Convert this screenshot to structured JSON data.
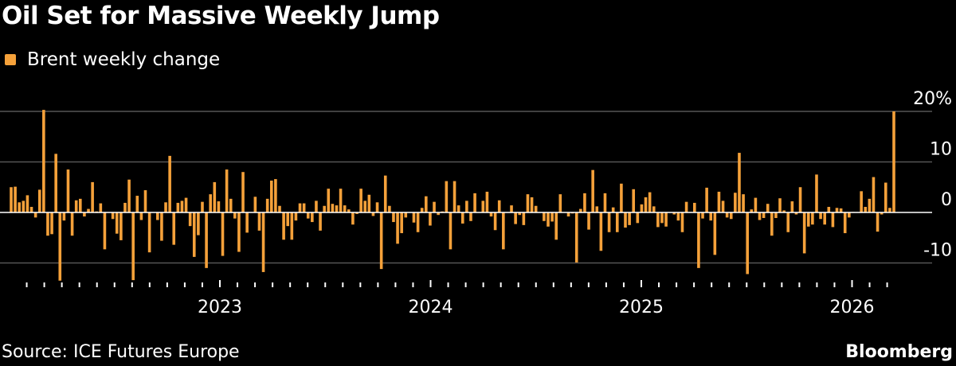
{
  "colors": {
    "background": "#000000",
    "bar": "#f5a13a",
    "grid": "#555555",
    "zero_line": "#ffffff",
    "text": "#ffffff"
  },
  "footer": {
    "source": "Source: ICE Futures Europe",
    "brand": "Bloomberg"
  },
  "chart_data": {
    "type": "bar",
    "title": "Oil Set for Massive Weekly Jump",
    "legend": {
      "entries": [
        "Brent weekly change"
      ],
      "placement": "top-left"
    },
    "series": [
      {
        "name": "Brent weekly change",
        "frequency": "weekly",
        "values": [
          5,
          5.1,
          2,
          2.3,
          3.4,
          1.1,
          -1,
          4.5,
          20.3,
          -4.6,
          -4.3,
          11.6,
          -13.5,
          -1.6,
          8.5,
          -4.6,
          2.4,
          2.7,
          -0.8,
          0.7,
          6,
          0.2,
          1.8,
          -7.3,
          0,
          -1.3,
          -4.2,
          -5.5,
          1.9,
          6.5,
          -13.4,
          3.3,
          -1.5,
          4.4,
          -7.9,
          0,
          -1.5,
          -5.6,
          2,
          11.2,
          -6.4,
          1.9,
          2.3,
          2.9,
          -2.7,
          -8.8,
          -4.5,
          2.1,
          -11,
          3.6,
          6,
          2.2,
          -8.6,
          8.5,
          2.7,
          -1.2,
          -7.8,
          8,
          -4,
          0,
          3.1,
          -3.6,
          -11.8,
          2.7,
          6.3,
          6.6,
          1.3,
          -5.4,
          -2.7,
          -5.4,
          -1.6,
          1.8,
          1.8,
          -1.2,
          -1.9,
          2.3,
          -3.6,
          1.3,
          4.7,
          1.7,
          1.4,
          4.7,
          1.4,
          0.6,
          -2.4,
          -0.3,
          4.7,
          2.3,
          3.5,
          -0.7,
          2,
          -11.2,
          7.3,
          1.3,
          -1.9,
          -6.2,
          -4.1,
          -1,
          0,
          -2,
          -3.9,
          0.9,
          3.2,
          -2.6,
          2.1,
          -0.5,
          0.2,
          6.2,
          -7.3,
          6.2,
          1.4,
          -2.2,
          2.3,
          -1.7,
          3.8,
          0,
          2.3,
          4.1,
          -0.8,
          -3.5,
          2.4,
          -7.3,
          0,
          1.4,
          -2.3,
          -0.5,
          -2.5,
          3.6,
          3,
          1.3,
          0,
          -1.7,
          -2.8,
          -1.8,
          -5.4,
          3.6,
          0,
          -0.8,
          -0.2,
          -9.9,
          0.7,
          3.8,
          -3.4,
          8.4,
          1.2,
          -7.6,
          3.8,
          -3.9,
          1,
          -3.9,
          5.7,
          -3,
          -2.5,
          4.6,
          -2.1,
          1.6,
          3,
          4,
          1.2,
          -2.9,
          -2.1,
          -2.8,
          0,
          -0.4,
          -1.6,
          -3.9,
          2.1,
          0.1,
          1.9,
          -11,
          -1.2,
          4.9,
          -1.6,
          -8.4,
          4.1,
          2.3,
          -1,
          -1.3,
          3.9,
          11.8,
          3.6,
          -12.2,
          0.6,
          2.9,
          -1.5,
          -1.1,
          1.7,
          -4.6,
          -1.1,
          2.8,
          0.4,
          -3.9,
          2.2,
          -0.4,
          5,
          -8.1,
          -2.8,
          -2.4,
          7.5,
          -1.3,
          -2.4,
          1.1,
          -2.9,
          0.9,
          0.8,
          -4.1,
          -1,
          0.1,
          0,
          4.2,
          1.1,
          2.7,
          7,
          -3.8,
          -0.4,
          5.9,
          0.9,
          20
        ]
      }
    ],
    "x_tick_labels": [
      "2023",
      "2024",
      "2025",
      "2026"
    ],
    "y_tick_labels": [
      "20%",
      "10",
      "0",
      "-10"
    ],
    "y_ticks": [
      20,
      10,
      0,
      -10
    ],
    "ylim": [
      -15,
      22
    ],
    "y_axis_side": "right",
    "grid": true,
    "xlabel": "",
    "ylabel": ""
  }
}
